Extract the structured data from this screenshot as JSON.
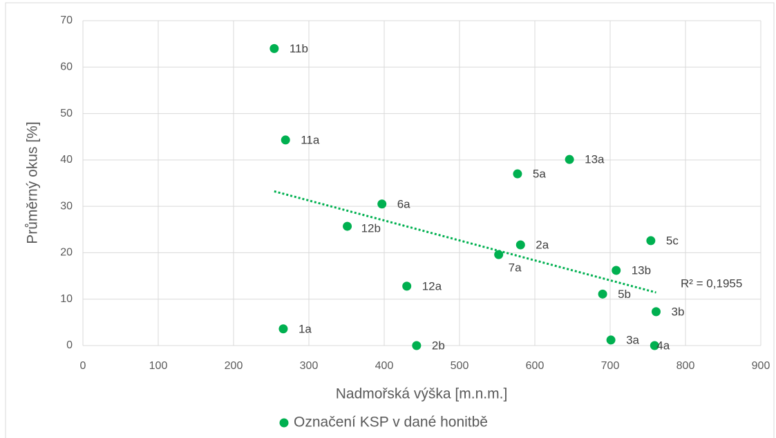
{
  "chart_data": {
    "type": "scatter",
    "x_label": "Nadmořská výška [m.n.m.]",
    "y_label": "Průměrný okus [%]",
    "series": [
      {
        "name": "Označení KSP v dané honitbě",
        "color": "#00b050",
        "x": [
          254,
          269,
          646,
          577,
          397,
          351,
          581,
          754,
          552,
          708,
          430,
          690,
          761,
          266,
          701,
          443,
          759
        ],
        "values": [
          64,
          44.3,
          40.1,
          37,
          30.5,
          25.7,
          21.7,
          22.6,
          19.6,
          16.2,
          12.8,
          11.1,
          7.3,
          3.6,
          1.2,
          0,
          0
        ],
        "point_labels": [
          "11b",
          "11a",
          "13a",
          "5a",
          "6a",
          "12b",
          "2a",
          "5c",
          "7a",
          "13b",
          "12a",
          "5b",
          "3b",
          "1a",
          "3a",
          "2b",
          "4a"
        ]
      }
    ],
    "trendline": true,
    "trendline_label": "R² = 0,1955",
    "xlim": [
      0,
      900
    ],
    "xticks": [
      0,
      100,
      200,
      300,
      400,
      500,
      600,
      700,
      800,
      900
    ],
    "ylim": [
      0,
      70
    ],
    "yticks": [
      0,
      10,
      20,
      30,
      40,
      50,
      60,
      70
    ],
    "grid": true,
    "legend": "bottom"
  }
}
